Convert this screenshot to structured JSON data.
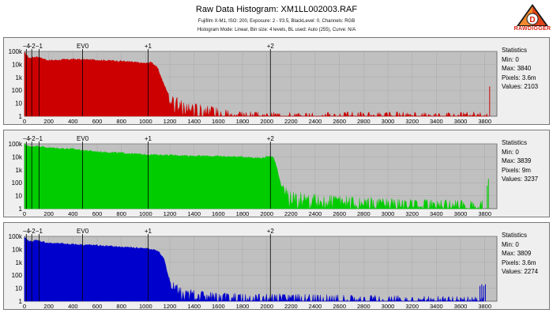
{
  "header": {
    "title": "Raw Data Histogram: XM1LL002003.RAF",
    "info_line": "Fujifilm X-M1, ISO: 200, Exposure: 2 - f/3.5, BlackLevel: 0, Channels: RGB",
    "mode_line": "Histogram Mode: Linear, Bin size: 4 levels, BL used: Auto (255), Curve: N/A",
    "logo_text": "RAWDIGGER",
    "logo_letter": "D"
  },
  "colors": {
    "red": "#cc0000",
    "green": "#00cc00",
    "blue": "#0000cc",
    "plot_bg": "#c0c0c0"
  },
  "chart_data": [
    {
      "type": "area",
      "name": "Red",
      "color": "#cc0000",
      "xlim": [
        0,
        3900
      ],
      "yscale": "log",
      "ylim": [
        1,
        100000
      ],
      "x_ticks": [
        0,
        200,
        400,
        600,
        800,
        1000,
        1200,
        1400,
        1600,
        1800,
        2000,
        2200,
        2400,
        2600,
        2800,
        3000,
        3200,
        3400,
        3600,
        3800
      ],
      "y_ticks": [
        "1",
        "10",
        "100",
        "1k",
        "10k",
        "100k"
      ],
      "ev_marks": [
        {
          "label": "−4",
          "x": 15
        },
        {
          "label": "−2",
          "x": 60
        },
        {
          "label": "−1",
          "x": 120
        },
        {
          "label": "EV0",
          "x": 480
        },
        {
          "label": "+1",
          "x": 1020
        },
        {
          "label": "+2",
          "x": 2030
        }
      ],
      "profile": [
        [
          0,
          80000
        ],
        [
          40,
          30000
        ],
        [
          100,
          40000
        ],
        [
          200,
          20000
        ],
        [
          400,
          25000
        ],
        [
          600,
          22000
        ],
        [
          800,
          18000
        ],
        [
          1000,
          12000
        ],
        [
          1050,
          15000
        ],
        [
          1100,
          5000
        ],
        [
          1150,
          300
        ],
        [
          1200,
          30
        ],
        [
          1300,
          8
        ],
        [
          1500,
          3
        ],
        [
          1900,
          1
        ],
        [
          3830,
          1
        ]
      ],
      "spikes": [
        [
          3840,
          200
        ]
      ],
      "stats": {
        "title": "Statistics",
        "min": "0",
        "max": "3840",
        "pixels": "3.6m",
        "values": "2103"
      }
    },
    {
      "type": "area",
      "name": "Green",
      "color": "#00cc00",
      "xlim": [
        0,
        3900
      ],
      "yscale": "log",
      "ylim": [
        1,
        100000
      ],
      "x_ticks": [
        0,
        200,
        400,
        600,
        800,
        1000,
        1200,
        1400,
        1600,
        1800,
        2000,
        2200,
        2400,
        2600,
        2800,
        3000,
        3200,
        3400,
        3600,
        3800
      ],
      "y_ticks": [
        "1",
        "10",
        "100",
        "1k",
        "10k",
        "100k"
      ],
      "ev_marks": [
        {
          "label": "−4",
          "x": 15
        },
        {
          "label": "−2",
          "x": 60
        },
        {
          "label": "−1",
          "x": 120
        },
        {
          "label": "EV0",
          "x": 480
        },
        {
          "label": "+1",
          "x": 1020
        },
        {
          "label": "+2",
          "x": 2030
        }
      ],
      "profile": [
        [
          0,
          100000
        ],
        [
          40,
          60000
        ],
        [
          100,
          70000
        ],
        [
          200,
          50000
        ],
        [
          400,
          40000
        ],
        [
          600,
          25000
        ],
        [
          800,
          20000
        ],
        [
          1000,
          15000
        ],
        [
          1400,
          12000
        ],
        [
          1800,
          10000
        ],
        [
          1950,
          8000
        ],
        [
          2050,
          12000
        ],
        [
          2080,
          2000
        ],
        [
          2120,
          50
        ],
        [
          2200,
          10
        ],
        [
          2500,
          5
        ],
        [
          3000,
          3
        ],
        [
          3780,
          2
        ]
      ],
      "spikes": [
        [
          3820,
          60
        ],
        [
          3830,
          200
        ]
      ],
      "stats": {
        "title": "Statistics",
        "min": "0",
        "max": "3839",
        "pixels": "9m",
        "values": "3237"
      }
    },
    {
      "type": "area",
      "name": "Blue",
      "color": "#0000cc",
      "xlim": [
        0,
        3900
      ],
      "yscale": "log",
      "ylim": [
        1,
        100000
      ],
      "x_ticks": [
        0,
        200,
        400,
        600,
        800,
        1000,
        1200,
        1400,
        1600,
        1800,
        2000,
        2200,
        2400,
        2600,
        2800,
        3000,
        3200,
        3400,
        3600,
        3800
      ],
      "y_ticks": [
        "1",
        "10",
        "100",
        "1k",
        "10k",
        "100k"
      ],
      "ev_marks": [
        {
          "label": "−4",
          "x": 15
        },
        {
          "label": "−2",
          "x": 60
        },
        {
          "label": "−1",
          "x": 120
        },
        {
          "label": "EV0",
          "x": 480
        },
        {
          "label": "+1",
          "x": 1020
        },
        {
          "label": "+2",
          "x": 2030
        }
      ],
      "profile": [
        [
          0,
          80000
        ],
        [
          40,
          40000
        ],
        [
          100,
          50000
        ],
        [
          200,
          30000
        ],
        [
          400,
          25000
        ],
        [
          600,
          20000
        ],
        [
          800,
          15000
        ],
        [
          1000,
          12000
        ],
        [
          1100,
          8000
        ],
        [
          1150,
          2000
        ],
        [
          1200,
          30
        ],
        [
          1300,
          5
        ],
        [
          1600,
          2
        ],
        [
          3790,
          1
        ]
      ],
      "spikes": [
        [
          3760,
          15
        ],
        [
          3775,
          20
        ],
        [
          3790,
          15
        ],
        [
          3805,
          20
        ]
      ],
      "stats": {
        "title": "Statistics",
        "min": "0",
        "max": "3809",
        "pixels": "3.6m",
        "values": "2274"
      }
    }
  ]
}
